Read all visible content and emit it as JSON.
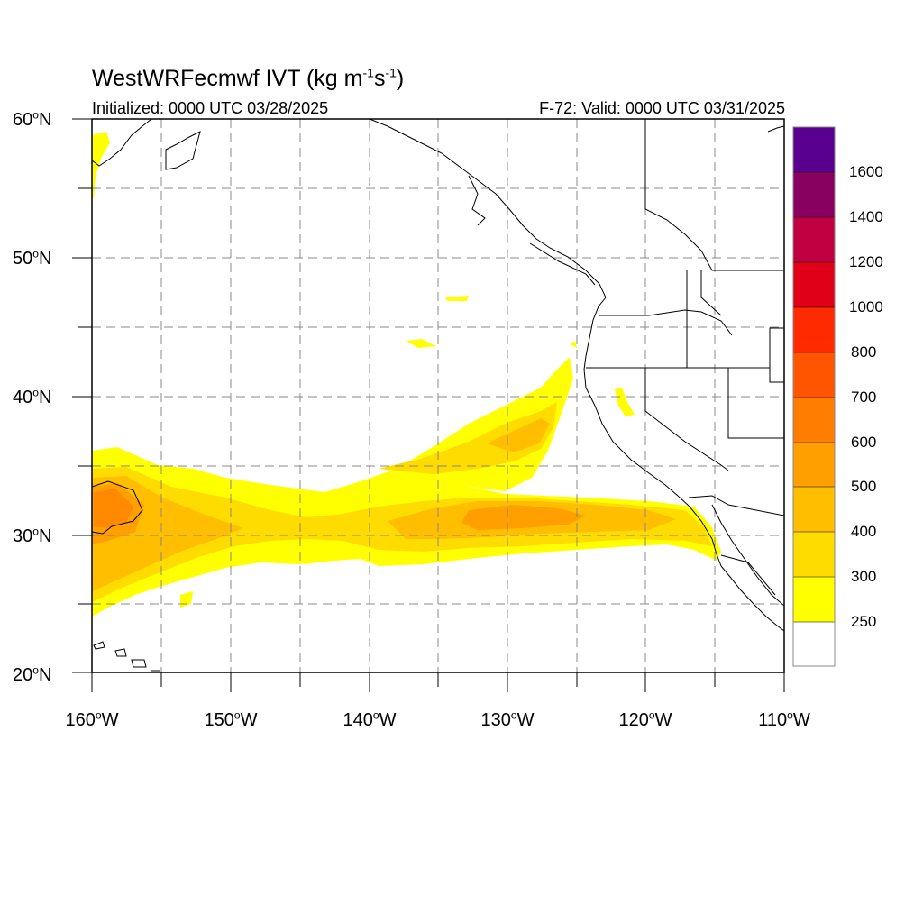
{
  "title": {
    "main": "WestWRFecmwf IVT (kg m",
    "sup1": "-1",
    "mid": "s",
    "sup2": "-1",
    "end": ")"
  },
  "initialized": "Initialized: 0000 UTC 03/28/2025",
  "valid": "F-72: Valid: 0000 UTC 03/31/2025",
  "lat_labels": [
    {
      "num": "60",
      "deg": "o",
      "hem": "N"
    },
    {
      "num": "50",
      "deg": "o",
      "hem": "N"
    },
    {
      "num": "40",
      "deg": "o",
      "hem": "N"
    },
    {
      "num": "30",
      "deg": "o",
      "hem": "N"
    },
    {
      "num": "20",
      "deg": "o",
      "hem": "N"
    }
  ],
  "lon_labels": [
    {
      "num": "160",
      "deg": "o",
      "hem": "W"
    },
    {
      "num": "150",
      "deg": "o",
      "hem": "W"
    },
    {
      "num": "140",
      "deg": "o",
      "hem": "W"
    },
    {
      "num": "130",
      "deg": "o",
      "hem": "W"
    },
    {
      "num": "120",
      "deg": "o",
      "hem": "W"
    },
    {
      "num": "110",
      "deg": "o",
      "hem": "W"
    }
  ],
  "colorbar": {
    "labels": [
      "1600",
      "1400",
      "1200",
      "1000",
      "800",
      "700",
      "600",
      "500",
      "400",
      "300",
      "250"
    ],
    "colors_top_to_bottom": [
      "#5a0090",
      "#880060",
      "#c00040",
      "#e00018",
      "#ff2a00",
      "#ff5500",
      "#ff7d00",
      "#ffa000",
      "#ffbe00",
      "#ffdc00",
      "#ffff00",
      "#ffffff"
    ]
  },
  "map": {
    "lon_range": [
      -160,
      -110
    ],
    "lat_range": [
      20,
      60
    ],
    "grid_lon_step": 5,
    "grid_lat_step": 5,
    "grid": "dashed gray"
  }
}
